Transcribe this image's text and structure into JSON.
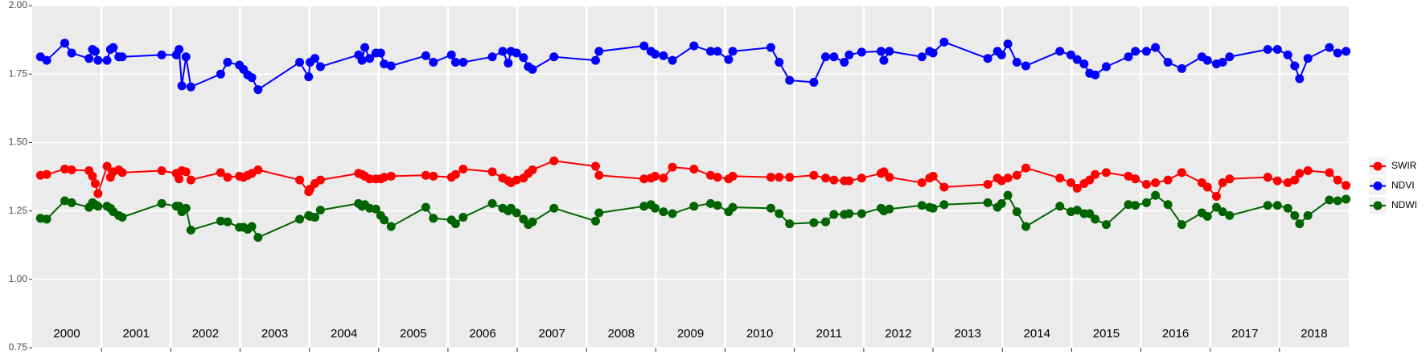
{
  "chart_data": {
    "type": "line",
    "x": [
      2000.12,
      2000.21,
      2000.47,
      2000.57,
      2000.82,
      2000.87,
      2000.91,
      2000.95,
      2001.08,
      2001.13,
      2001.17,
      2001.25,
      2001.3,
      2001.87,
      2002.08,
      2002.12,
      2002.16,
      2002.22,
      2002.29,
      2002.72,
      2002.82,
      2002.99,
      2003.05,
      2003.11,
      2003.17,
      2003.26,
      2003.86,
      2003.99,
      2004.01,
      2004.08,
      2004.16,
      2004.71,
      2004.76,
      2004.8,
      2004.87,
      2004.96,
      2005.03,
      2005.08,
      2005.18,
      2005.68,
      2005.79,
      2006.05,
      2006.11,
      2006.22,
      2006.64,
      2006.79,
      2006.87,
      2006.91,
      2006.99,
      2007.09,
      2007.16,
      2007.22,
      2007.53,
      2008.13,
      2008.18,
      2008.83,
      2008.93,
      2008.99,
      2009.11,
      2009.24,
      2009.55,
      2009.79,
      2009.89,
      2010.05,
      2010.11,
      2010.66,
      2010.78,
      2010.93,
      2011.28,
      2011.45,
      2011.57,
      2011.72,
      2011.79,
      2011.97,
      2012.25,
      2012.29,
      2012.37,
      2012.84,
      2012.95,
      2013.0,
      2013.16,
      2013.79,
      2013.93,
      2013.99,
      2014.08,
      2014.21,
      2014.34,
      2014.83,
      2014.99,
      2015.08,
      2015.18,
      2015.26,
      2015.34,
      2015.5,
      2015.82,
      2015.92,
      2016.08,
      2016.21,
      2016.39,
      2016.59,
      2016.88,
      2016.96,
      2017.09,
      2017.18,
      2017.28,
      2017.83,
      2017.97,
      2018.12,
      2018.22,
      2018.29,
      2018.41,
      2018.72,
      2018.84,
      2018.96
    ],
    "series": [
      {
        "name": "SWIR",
        "color": "#ff0000",
        "values": [
          1.38,
          1.383,
          1.403,
          1.4,
          1.397,
          1.377,
          1.35,
          1.313,
          1.413,
          1.373,
          1.393,
          1.4,
          1.39,
          1.397,
          1.387,
          1.367,
          1.397,
          1.393,
          1.363,
          1.39,
          1.373,
          1.377,
          1.373,
          1.38,
          1.387,
          1.4,
          1.363,
          1.32,
          1.33,
          1.35,
          1.363,
          1.387,
          1.383,
          1.377,
          1.367,
          1.367,
          1.367,
          1.373,
          1.377,
          1.38,
          1.377,
          1.373,
          1.383,
          1.403,
          1.393,
          1.37,
          1.36,
          1.353,
          1.363,
          1.37,
          1.387,
          1.4,
          1.433,
          1.413,
          1.38,
          1.367,
          1.37,
          1.377,
          1.37,
          1.41,
          1.403,
          1.38,
          1.373,
          1.367,
          1.377,
          1.373,
          1.373,
          1.373,
          1.38,
          1.37,
          1.363,
          1.36,
          1.36,
          1.37,
          1.387,
          1.393,
          1.373,
          1.353,
          1.37,
          1.377,
          1.337,
          1.347,
          1.37,
          1.36,
          1.37,
          1.38,
          1.407,
          1.37,
          1.353,
          1.333,
          1.35,
          1.363,
          1.383,
          1.39,
          1.377,
          1.367,
          1.347,
          1.353,
          1.363,
          1.39,
          1.353,
          1.337,
          1.303,
          1.353,
          1.367,
          1.373,
          1.36,
          1.353,
          1.363,
          1.387,
          1.397,
          1.39,
          1.363,
          1.343
        ]
      },
      {
        "name": "NDVI",
        "color": "#0000ff",
        "values": [
          1.813,
          1.8,
          1.863,
          1.827,
          1.807,
          1.84,
          1.833,
          1.8,
          1.8,
          1.84,
          1.847,
          1.813,
          1.813,
          1.82,
          1.82,
          1.84,
          1.707,
          1.813,
          1.703,
          1.75,
          1.793,
          1.783,
          1.767,
          1.747,
          1.737,
          1.693,
          1.793,
          1.74,
          1.793,
          1.807,
          1.777,
          1.82,
          1.8,
          1.847,
          1.807,
          1.827,
          1.827,
          1.787,
          1.78,
          1.817,
          1.793,
          1.82,
          1.793,
          1.793,
          1.813,
          1.833,
          1.79,
          1.833,
          1.827,
          1.81,
          1.777,
          1.767,
          1.813,
          1.8,
          1.833,
          1.853,
          1.833,
          1.823,
          1.817,
          1.8,
          1.853,
          1.833,
          1.833,
          1.803,
          1.833,
          1.847,
          1.793,
          1.727,
          1.72,
          1.813,
          1.813,
          1.793,
          1.82,
          1.83,
          1.833,
          1.8,
          1.833,
          1.813,
          1.833,
          1.827,
          1.867,
          1.807,
          1.833,
          1.82,
          1.86,
          1.793,
          1.78,
          1.833,
          1.82,
          1.803,
          1.787,
          1.753,
          1.747,
          1.777,
          1.813,
          1.833,
          1.833,
          1.847,
          1.793,
          1.77,
          1.813,
          1.8,
          1.787,
          1.793,
          1.813,
          1.84,
          1.84,
          1.82,
          1.78,
          1.733,
          1.807,
          1.847,
          1.827,
          1.833
        ]
      },
      {
        "name": "NDWI",
        "color": "#006400",
        "values": [
          1.223,
          1.22,
          1.287,
          1.28,
          1.263,
          1.28,
          1.273,
          1.267,
          1.267,
          1.26,
          1.247,
          1.233,
          1.227,
          1.277,
          1.267,
          1.267,
          1.247,
          1.26,
          1.18,
          1.213,
          1.21,
          1.19,
          1.19,
          1.183,
          1.193,
          1.153,
          1.22,
          1.233,
          1.23,
          1.227,
          1.253,
          1.277,
          1.267,
          1.273,
          1.26,
          1.257,
          1.233,
          1.217,
          1.193,
          1.263,
          1.223,
          1.217,
          1.203,
          1.227,
          1.277,
          1.26,
          1.25,
          1.26,
          1.243,
          1.22,
          1.2,
          1.21,
          1.26,
          1.213,
          1.243,
          1.267,
          1.273,
          1.26,
          1.247,
          1.24,
          1.267,
          1.277,
          1.27,
          1.247,
          1.263,
          1.26,
          1.24,
          1.203,
          1.207,
          1.21,
          1.237,
          1.237,
          1.24,
          1.24,
          1.26,
          1.25,
          1.257,
          1.27,
          1.263,
          1.26,
          1.273,
          1.28,
          1.263,
          1.277,
          1.307,
          1.247,
          1.193,
          1.267,
          1.247,
          1.253,
          1.24,
          1.24,
          1.22,
          1.2,
          1.273,
          1.27,
          1.28,
          1.307,
          1.273,
          1.2,
          1.243,
          1.23,
          1.263,
          1.247,
          1.233,
          1.27,
          1.27,
          1.26,
          1.233,
          1.203,
          1.233,
          1.29,
          1.287,
          1.293
        ]
      }
    ],
    "xlim": [
      2000,
      2019
    ],
    "xticks": [
      {
        "value": 2000.5,
        "label": "2000"
      },
      {
        "value": 2001.5,
        "label": "2001"
      },
      {
        "value": 2002.5,
        "label": "2002"
      },
      {
        "value": 2003.5,
        "label": "2003"
      },
      {
        "value": 2004.5,
        "label": "2004"
      },
      {
        "value": 2005.5,
        "label": "2005"
      },
      {
        "value": 2006.5,
        "label": "2006"
      },
      {
        "value": 2007.5,
        "label": "2007"
      },
      {
        "value": 2008.5,
        "label": "2008"
      },
      {
        "value": 2009.5,
        "label": "2009"
      },
      {
        "value": 2010.5,
        "label": "2010"
      },
      {
        "value": 2011.5,
        "label": "2011"
      },
      {
        "value": 2012.5,
        "label": "2012"
      },
      {
        "value": 2013.5,
        "label": "2013"
      },
      {
        "value": 2014.5,
        "label": "2014"
      },
      {
        "value": 2015.5,
        "label": "2015"
      },
      {
        "value": 2016.5,
        "label": "2016"
      },
      {
        "value": 2017.5,
        "label": "2017"
      },
      {
        "value": 2018.5,
        "label": "2018"
      }
    ],
    "xgrid": [
      2001,
      2002,
      2003,
      2004,
      2005,
      2006,
      2007,
      2008,
      2009,
      2010,
      2011,
      2012,
      2013,
      2014,
      2015,
      2016,
      2017,
      2018
    ],
    "ylim": [
      0.75,
      2
    ],
    "yticks": [
      0.75,
      {
        "value": 1,
        "label": "1.00"
      },
      1.25,
      {
        "value": 1.5,
        "label": "1.50"
      },
      1.75,
      {
        "value": 2,
        "label": "2.00"
      }
    ],
    "grid": true,
    "legend": "right"
  }
}
